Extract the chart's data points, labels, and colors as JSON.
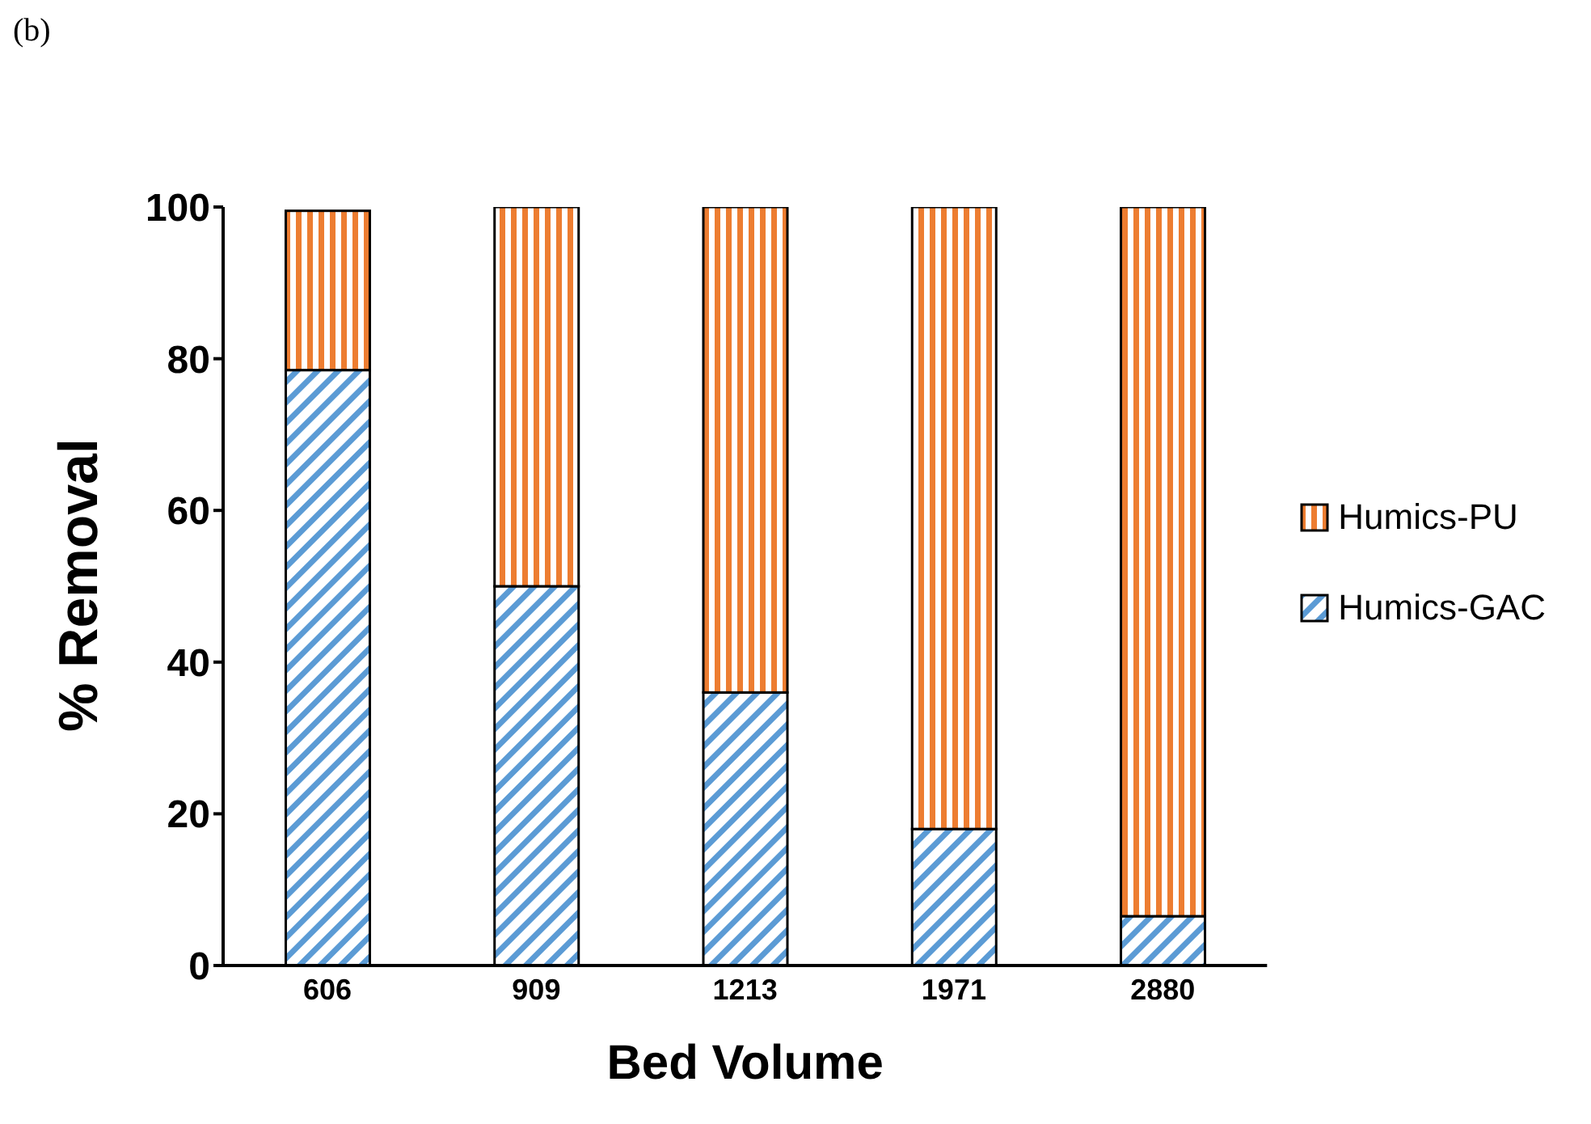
{
  "chart_data": {
    "type": "bar",
    "title": "(b)",
    "xlabel": "Bed Volume",
    "ylabel": "% Removal",
    "categories": [
      "606",
      "909",
      "1213",
      "1971",
      "2880"
    ],
    "stacked": true,
    "series": [
      {
        "name": "Humics-GAC",
        "color": "#5b9bd5",
        "values": [
          78.5,
          50,
          36,
          18,
          6.5
        ]
      },
      {
        "name": "Humics-PU",
        "color": "#ed7d31",
        "values": [
          21,
          50,
          64,
          82,
          93.5
        ]
      }
    ],
    "ylim": [
      0,
      100
    ],
    "yticks": [
      0,
      20,
      40,
      60,
      80,
      100
    ],
    "grid": false,
    "legend": "right"
  }
}
